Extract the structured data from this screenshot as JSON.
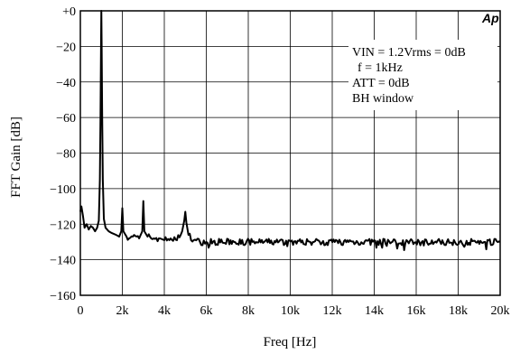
{
  "chart_data": {
    "type": "line",
    "xlabel": "Freq [Hz]",
    "ylabel": "FFT Gain [dB]",
    "xlim": [
      0,
      20000
    ],
    "ylim": [
      -160,
      0
    ],
    "grid": true,
    "x_ticks": [
      0,
      2000,
      4000,
      6000,
      8000,
      10000,
      12000,
      14000,
      16000,
      18000,
      20000
    ],
    "x_tick_labels": [
      "0",
      "2k",
      "4k",
      "6k",
      "8k",
      "10k",
      "12k",
      "14k",
      "16k",
      "18k",
      "20k"
    ],
    "y_ticks": [
      0,
      -20,
      -40,
      -60,
      -80,
      -100,
      -120,
      -140,
      -160
    ],
    "y_tick_labels": [
      "+0",
      "−20",
      "−40",
      "−60",
      "−80",
      "−100",
      "−120",
      "−140",
      "−160"
    ],
    "logo": "Ap",
    "annotations": [
      "VIN = 1.2Vrms = 0dB",
      "f = 1kHz",
      "ATT = 0dB",
      "BH window"
    ],
    "series": [
      {
        "color": "#000000",
        "noise_floor": -129,
        "points": [
          [
            0,
            -113
          ],
          [
            50,
            -110
          ],
          [
            120,
            -115
          ],
          [
            200,
            -122
          ],
          [
            300,
            -120
          ],
          [
            400,
            -123
          ],
          [
            500,
            -121
          ],
          [
            600,
            -122
          ],
          [
            700,
            -124
          ],
          [
            800,
            -122
          ],
          [
            880,
            -118
          ],
          [
            930,
            -95
          ],
          [
            960,
            -60
          ],
          [
            985,
            -20
          ],
          [
            1000,
            0
          ],
          [
            1015,
            -20
          ],
          [
            1040,
            -60
          ],
          [
            1070,
            -95
          ],
          [
            1120,
            -117
          ],
          [
            1200,
            -122
          ],
          [
            1350,
            -124
          ],
          [
            1500,
            -125
          ],
          [
            1700,
            -126
          ],
          [
            1850,
            -127
          ],
          [
            1950,
            -124
          ],
          [
            2000,
            -111
          ],
          [
            2050,
            -124
          ],
          [
            2200,
            -127
          ],
          [
            2500,
            -127
          ],
          [
            2800,
            -128
          ],
          [
            2950,
            -124
          ],
          [
            3000,
            -107
          ],
          [
            3050,
            -124
          ],
          [
            3200,
            -127
          ],
          [
            3500,
            -128
          ],
          [
            3800,
            -128
          ],
          [
            4000,
            -129
          ],
          [
            4300,
            -128
          ],
          [
            4600,
            -129
          ],
          [
            4850,
            -124
          ],
          [
            4950,
            -118
          ],
          [
            5000,
            -113
          ],
          [
            5050,
            -119
          ],
          [
            5150,
            -126
          ],
          [
            5400,
            -129
          ],
          [
            5700,
            -130
          ],
          [
            6000,
            -130
          ],
          [
            20000,
            -130
          ]
        ]
      }
    ]
  }
}
